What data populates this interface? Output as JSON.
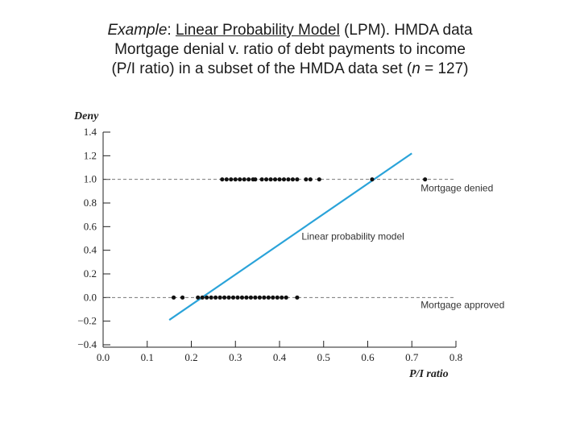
{
  "title": {
    "line1_italic": "Example",
    "line1_colon": ": ",
    "line1_underlined": "Linear Probability Model",
    "line1_rest": " (LPM). HMDA data",
    "line2": "Mortgage denial v. ratio of debt payments to income",
    "line3_pre": "(P/I ratio) in a subset of the HMDA data set (",
    "line3_n": "n",
    "line3_post": " = 127)"
  },
  "chart_data": {
    "type": "scatter",
    "xlabel": "P/I ratio",
    "ylabel": "Deny",
    "xlim": [
      0.0,
      0.8
    ],
    "ylim": [
      -0.4,
      1.4
    ],
    "x_ticks": [
      "0.0",
      "0.1",
      "0.2",
      "0.3",
      "0.4",
      "0.5",
      "0.6",
      "0.7",
      "0.8"
    ],
    "y_ticks": [
      "1.4",
      "1.2",
      "1.0",
      "0.8",
      "0.6",
      "0.4",
      "0.2",
      "0.0",
      "−0.2",
      "−0.4"
    ],
    "x_tick_values": [
      0.0,
      0.1,
      0.2,
      0.3,
      0.4,
      0.5,
      0.6,
      0.7,
      0.8
    ],
    "y_tick_values": [
      1.4,
      1.2,
      1.0,
      0.8,
      0.6,
      0.4,
      0.2,
      0.0,
      -0.2,
      -0.4
    ],
    "reference_lines": [
      1.0,
      0.0
    ],
    "series": [
      {
        "values_x": [
          0.27,
          0.28,
          0.29,
          0.3,
          0.31,
          0.32,
          0.33,
          0.34,
          0.345,
          0.36,
          0.37,
          0.38,
          0.39,
          0.4,
          0.41,
          0.42,
          0.43,
          0.44,
          0.46,
          0.47,
          0.49,
          0.61,
          0.73
        ],
        "values_y": [
          1,
          1,
          1,
          1,
          1,
          1,
          1,
          1,
          1,
          1,
          1,
          1,
          1,
          1,
          1,
          1,
          1,
          1,
          1,
          1,
          1,
          1,
          1
        ]
      },
      {
        "values_x": [
          0.16,
          0.18,
          0.215,
          0.225,
          0.235,
          0.245,
          0.255,
          0.265,
          0.275,
          0.285,
          0.295,
          0.305,
          0.315,
          0.325,
          0.335,
          0.345,
          0.355,
          0.365,
          0.375,
          0.385,
          0.395,
          0.405,
          0.415,
          0.44
        ],
        "values_y": [
          0,
          0,
          0,
          0,
          0,
          0,
          0,
          0,
          0,
          0,
          0,
          0,
          0,
          0,
          0,
          0,
          0,
          0,
          0,
          0,
          0,
          0,
          0,
          0
        ]
      }
    ],
    "fit_line": {
      "x": [
        0.15,
        0.7
      ],
      "y": [
        -0.19,
        1.22
      ]
    },
    "annotations": [
      {
        "text": "Mortgage denied",
        "x": 0.72,
        "y": 0.9
      },
      {
        "text": "Linear probability model",
        "x": 0.45,
        "y": 0.49
      },
      {
        "text": "Mortgage approved",
        "x": 0.72,
        "y": -0.09
      }
    ],
    "colors": {
      "fit_line": "#2aa3d9",
      "points": "#111111",
      "reference": "#777777"
    }
  }
}
